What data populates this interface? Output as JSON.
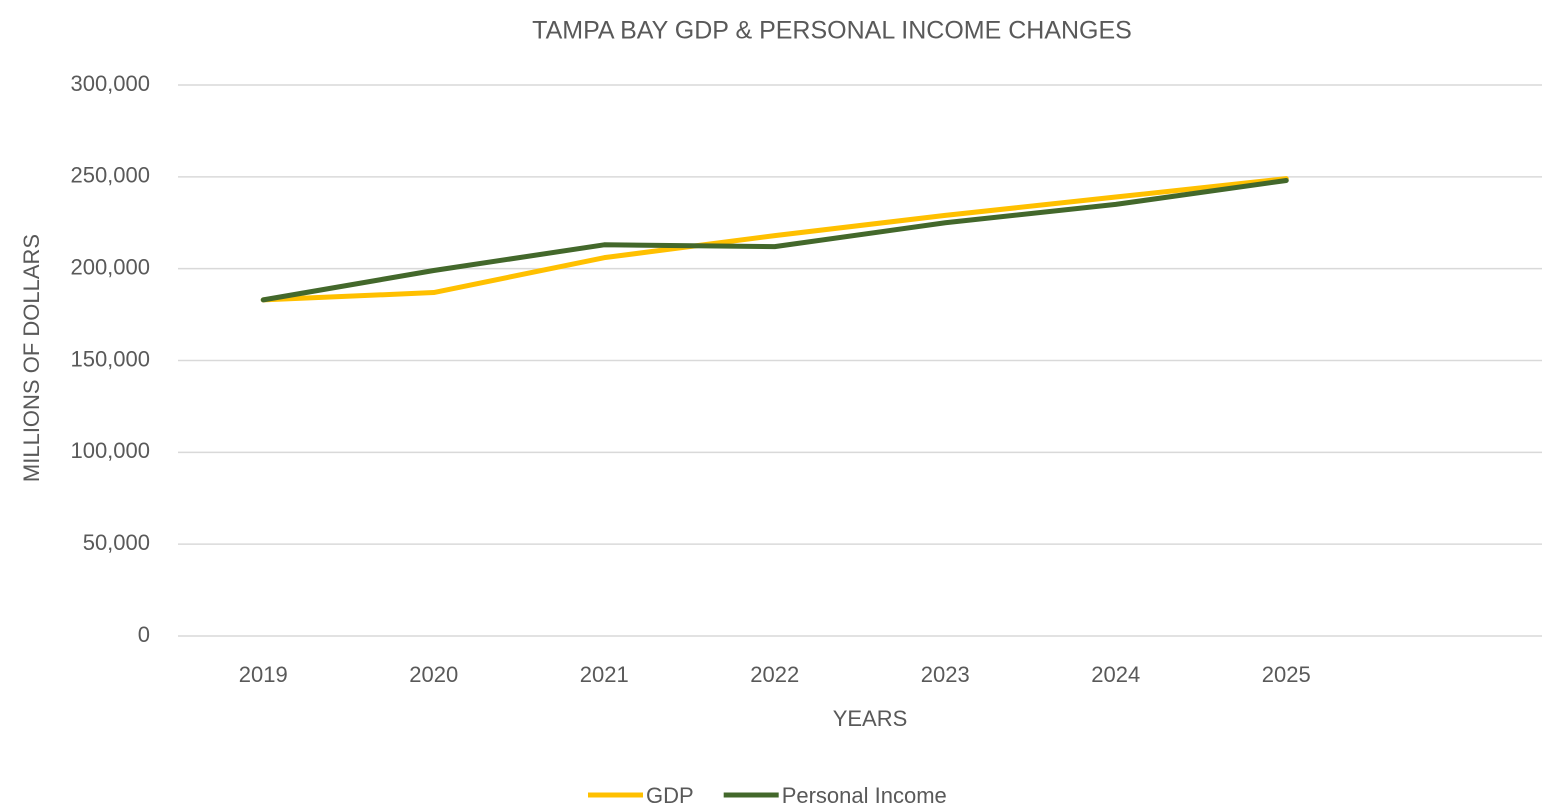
{
  "chart_data": {
    "type": "line",
    "title": "TAMPA BAY GDP & PERSONAL INCOME CHANGES",
    "x_label": "YEARS",
    "y_label": "MILLIONS OF DOLLARS",
    "categories": [
      "2019",
      "2020",
      "2021",
      "2022",
      "2023",
      "2024",
      "2025",
      null
    ],
    "series": [
      {
        "name": "GDP",
        "color": "#ffc000",
        "values": [
          183000,
          187000,
          206000,
          218000,
          229000,
          239000,
          249000,
          null
        ]
      },
      {
        "name": "Personal Income",
        "color": "#43682b",
        "values": [
          183000,
          199000,
          213000,
          212000,
          225000,
          235000,
          248000,
          null
        ]
      }
    ],
    "ylim": [
      0,
      300000
    ],
    "yticks": [
      0,
      {
        "value": 50000,
        "label": "50,000"
      },
      {
        "value": 100000,
        "label": "100,000"
      },
      {
        "value": 150000,
        "label": "150,000"
      },
      {
        "value": 200000,
        "label": "200,000"
      },
      {
        "value": 250000,
        "label": "250,000"
      },
      {
        "value": 300000,
        "label": "300,000"
      }
    ],
    "grid": true,
    "legend": "bottom"
  }
}
